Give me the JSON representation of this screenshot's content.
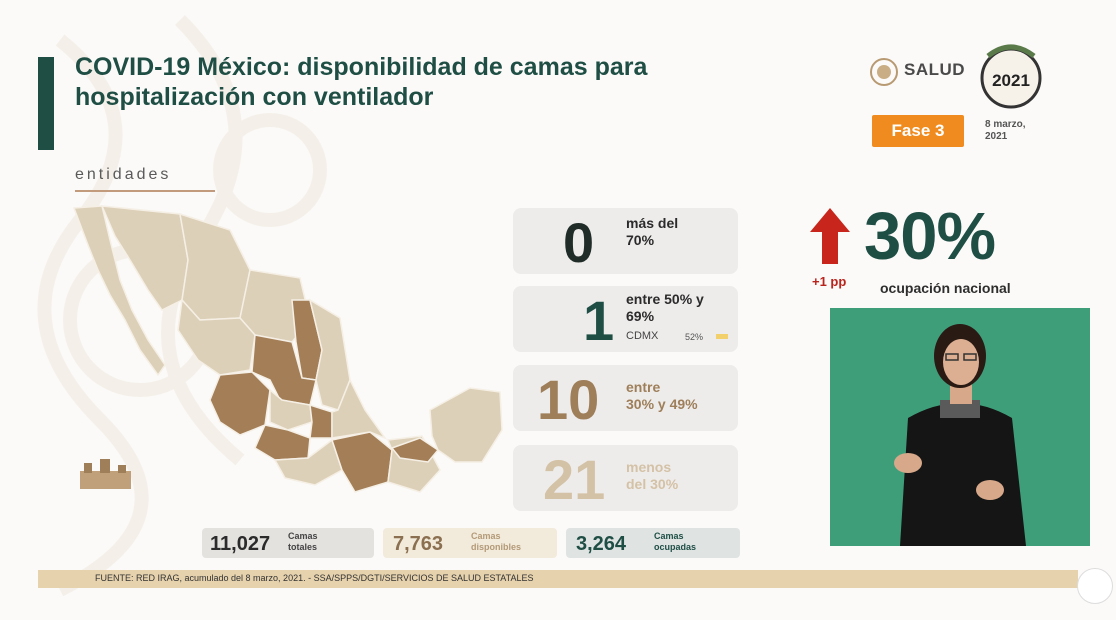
{
  "header": {
    "title_line1": "COVID-19 México: disponibilidad de camas para",
    "title_line2": "hospitalización con ventilador",
    "section_label": "entidades"
  },
  "branding": {
    "salud": "SALUD",
    "year": "2021",
    "phase": "Fase 3",
    "date_line1": "8 marzo,",
    "date_line2": "2021"
  },
  "categories": [
    {
      "count": "0",
      "label_line1": "más del",
      "label_line2": "70%",
      "color": "#1f2c28"
    },
    {
      "count": "1",
      "label_line1": "entre 50% y",
      "label_line2": "69%",
      "color": "#1f4e45",
      "state": "CDMX",
      "state_pct": "52%"
    },
    {
      "count": "10",
      "label_line1": "entre",
      "label_line2": "30% y 49%",
      "color": "#9e7f5a"
    },
    {
      "count": "21",
      "label_line1": "menos",
      "label_line2": "del 30%",
      "color": "#d4c2a6"
    }
  ],
  "national": {
    "occupancy": "30%",
    "change": "+1 pp",
    "label": "ocupación nacional"
  },
  "stats": [
    {
      "value": "11,027",
      "label_line1": "Camas",
      "label_line2": "totales",
      "bg": "#e4e2df",
      "color": "#2b2b2b"
    },
    {
      "value": "7,763",
      "label_line1": "Camas",
      "label_line2": "disponibles",
      "bg": "#f2eadb",
      "color": "#8a7050"
    },
    {
      "value": "3,264",
      "label_line1": "Camas",
      "label_line2": "ocupadas",
      "bg": "#dfe4e3",
      "color": "#1f4e45"
    }
  ],
  "footer": {
    "source": "FUENTE: RED IRAG, acumulado del 8 marzo, 2021. - SSA/SPPS/DGTI/SERVICIOS DE SALUD ESTATALES"
  },
  "colors": {
    "map_light": "#ddd0b8",
    "map_dark": "#a37e56",
    "map_stroke": "#f5efe5",
    "accent_green": "#1f4e45",
    "arrow_red": "#c8261c"
  }
}
